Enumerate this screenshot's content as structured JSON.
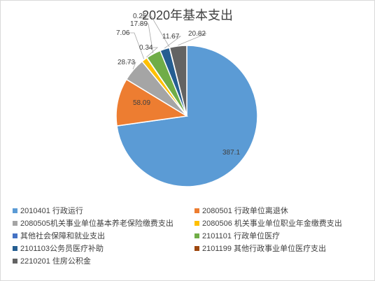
{
  "chart_data": {
    "type": "pie",
    "title": "2020年基本支出",
    "slices": [
      {
        "label": "2010401 行政运行",
        "value": 387.1,
        "color": "#5b9bd5"
      },
      {
        "label": "2080501 行政单位离退休",
        "value": 58.09,
        "color": "#ed7d31"
      },
      {
        "label": " 2080505机关事业单位基本养老保险缴费支出",
        "value": 28.73,
        "color": "#a5a5a5"
      },
      {
        "label": "2080506 机关事业单位职业年金缴费支出",
        "value": 7.06,
        "color": "#ffc000"
      },
      {
        "label": "其他社会保障和就业支出",
        "value": 0.34,
        "color": "#4472c4"
      },
      {
        "label": "2101101 行政单位医疗",
        "value": 17.89,
        "color": "#70ad47"
      },
      {
        "label": "2101103公务员医疗补助",
        "value": 11.67,
        "color": "#255e91"
      },
      {
        "label": "2101199 其他行政事业单位医疗支出",
        "value": 0.25,
        "color": "#9e480e"
      },
      {
        "label": "2210201 住房公积金",
        "value": 20.82,
        "color": "#636363"
      }
    ],
    "data_labels": [
      "387.1",
      "58.09",
      "28.73",
      "7.06",
      "0.34",
      "17.89",
      "11.67",
      "0.25",
      "20.82"
    ]
  }
}
